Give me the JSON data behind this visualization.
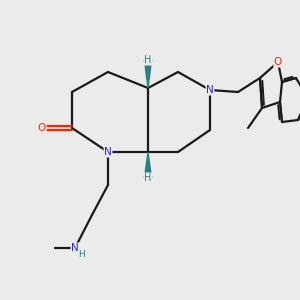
{
  "background_color": "#ebebeb",
  "bond_color": "#1a1a1a",
  "nitrogen_color": "#2222ff",
  "oxygen_color": "#ff2200",
  "stereo_h_color": "#2a8080",
  "line_width": 1.6,
  "figsize": [
    3.0,
    3.0
  ],
  "dpi": 100,
  "xlim": [
    0,
    10
  ],
  "ylim": [
    0,
    10
  ]
}
